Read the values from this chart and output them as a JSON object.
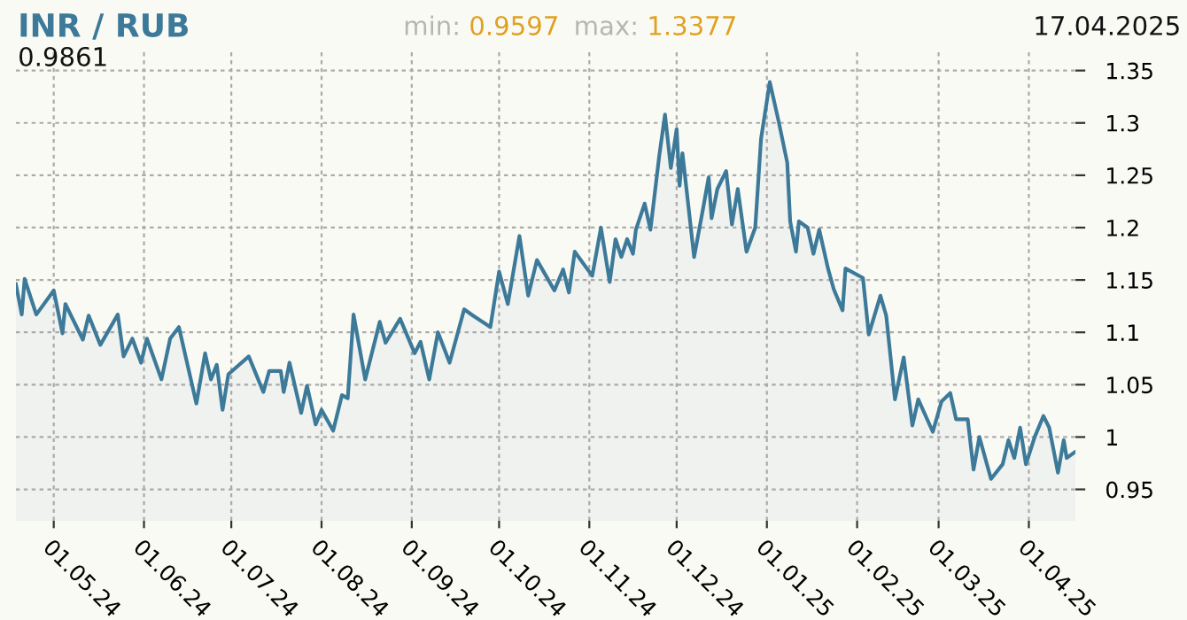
{
  "chart_data": {
    "type": "area",
    "title": "INR / RUB",
    "annotations": [
      "min: 0.9597",
      "max: 1.3377",
      "17.04.2025",
      "0.9861"
    ],
    "x": [
      "2024-04-18",
      "2024-04-20",
      "2024-04-21",
      "2024-04-25",
      "2024-05-01",
      "2024-05-04",
      "2024-05-05",
      "2024-05-11",
      "2024-05-13",
      "2024-05-17",
      "2024-05-23",
      "2024-05-25",
      "2024-05-28",
      "2024-05-31",
      "2024-06-02",
      "2024-06-07",
      "2024-06-10",
      "2024-06-13",
      "2024-06-19",
      "2024-06-22",
      "2024-06-24",
      "2024-06-26",
      "2024-06-28",
      "2024-06-30",
      "2024-07-07",
      "2024-07-12",
      "2024-07-14",
      "2024-07-18",
      "2024-07-19",
      "2024-07-21",
      "2024-07-25",
      "2024-07-27",
      "2024-07-30",
      "2024-08-01",
      "2024-08-05",
      "2024-08-08",
      "2024-08-10",
      "2024-08-12",
      "2024-08-16",
      "2024-08-21",
      "2024-08-23",
      "2024-08-28",
      "2024-09-02",
      "2024-09-04",
      "2024-09-07",
      "2024-09-10",
      "2024-09-14",
      "2024-09-19",
      "2024-09-22",
      "2024-09-28",
      "2024-10-01",
      "2024-10-04",
      "2024-10-08",
      "2024-10-11",
      "2024-10-14",
      "2024-10-20",
      "2024-10-23",
      "2024-10-25",
      "2024-10-27",
      "2024-11-02",
      "2024-11-05",
      "2024-11-08",
      "2024-11-10",
      "2024-11-12",
      "2024-11-14",
      "2024-11-16",
      "2024-11-17",
      "2024-11-20",
      "2024-11-22",
      "2024-11-25",
      "2024-11-27",
      "2024-11-29",
      "2024-12-01",
      "2024-12-02",
      "2024-12-03",
      "2024-12-07",
      "2024-12-10",
      "2024-12-12",
      "2024-12-13",
      "2024-12-15",
      "2024-12-18",
      "2024-12-20",
      "2024-12-22",
      "2024-12-25",
      "2024-12-28",
      "2024-12-30",
      "2025-01-02",
      "2025-01-05",
      "2025-01-08",
      "2025-01-09",
      "2025-01-11",
      "2025-01-12",
      "2025-01-15",
      "2025-01-17",
      "2025-01-19",
      "2025-01-22",
      "2025-01-24",
      "2025-01-27",
      "2025-01-28",
      "2025-02-03",
      "2025-02-05",
      "2025-02-09",
      "2025-02-11",
      "2025-02-14",
      "2025-02-17",
      "2025-02-20",
      "2025-02-22",
      "2025-02-27",
      "2025-03-02",
      "2025-03-05",
      "2025-03-07",
      "2025-03-11",
      "2025-03-13",
      "2025-03-15",
      "2025-03-19",
      "2025-03-23",
      "2025-03-25",
      "2025-03-27",
      "2025-03-29",
      "2025-03-31",
      "2025-04-03",
      "2025-04-06",
      "2025-04-08",
      "2025-04-11",
      "2025-04-13",
      "2025-04-14",
      "2025-04-17"
    ],
    "series": [
      {
        "color": "#3d7a99",
        "values": [
          1.146,
          1.117,
          1.151,
          1.117,
          1.14,
          1.099,
          1.127,
          1.093,
          1.116,
          1.088,
          1.117,
          1.077,
          1.094,
          1.071,
          1.094,
          1.055,
          1.094,
          1.105,
          1.032,
          1.08,
          1.055,
          1.069,
          1.026,
          1.06,
          1.077,
          1.043,
          1.063,
          1.063,
          1.043,
          1.071,
          1.023,
          1.049,
          1.012,
          1.026,
          1.006,
          1.04,
          1.037,
          1.117,
          1.055,
          1.11,
          1.09,
          1.113,
          1.08,
          1.091,
          1.055,
          1.1,
          1.071,
          1.122,
          1.116,
          1.105,
          1.158,
          1.127,
          1.192,
          1.135,
          1.169,
          1.14,
          1.16,
          1.138,
          1.177,
          1.154,
          1.2,
          1.148,
          1.189,
          1.172,
          1.189,
          1.175,
          1.198,
          1.223,
          1.198,
          1.268,
          1.308,
          1.257,
          1.294,
          1.24,
          1.271,
          1.172,
          1.217,
          1.248,
          1.209,
          1.237,
          1.254,
          1.203,
          1.237,
          1.177,
          1.2,
          1.285,
          1.339,
          1.302,
          1.262,
          1.206,
          1.177,
          1.206,
          1.2,
          1.175,
          1.198,
          1.161,
          1.141,
          1.121,
          1.161,
          1.152,
          1.098,
          1.135,
          1.116,
          1.036,
          1.076,
          1.011,
          1.036,
          1.005,
          1.034,
          1.042,
          1.017,
          1.017,
          0.969,
          1.0,
          0.96,
          0.974,
          0.997,
          0.98,
          1.009,
          0.974,
          1.0,
          1.02,
          1.009,
          0.966,
          0.997,
          0.98,
          0.986
        ]
      }
    ],
    "xlim": [
      "2024-04-18",
      "2025-04-17"
    ],
    "xticks": [
      {
        "value": "2024-05-01",
        "label": "01.05.24"
      },
      {
        "value": "2024-06-01",
        "label": "01.06.24"
      },
      {
        "value": "2024-07-01",
        "label": "01.07.24"
      },
      {
        "value": "2024-08-01",
        "label": "01.08.24"
      },
      {
        "value": "2024-09-01",
        "label": "01.09.24"
      },
      {
        "value": "2024-10-01",
        "label": "01.10.24"
      },
      {
        "value": "2024-11-01",
        "label": "01.11.24"
      },
      {
        "value": "2024-12-01",
        "label": "01.12.24"
      },
      {
        "value": "2025-01-01",
        "label": "01.01.25"
      },
      {
        "value": "2025-02-01",
        "label": "01.02.25"
      },
      {
        "value": "2025-03-01",
        "label": "01.03.25"
      },
      {
        "value": "2025-04-01",
        "label": "01.04.25"
      }
    ],
    "ylim": [
      0.92,
      1.37
    ],
    "yticks": [
      0.95,
      1,
      1.05,
      1.1,
      1.15,
      1.2,
      1.25,
      1.3,
      1.35
    ],
    "grid": true,
    "legend": false,
    "line_style": "solid",
    "marker": "none"
  }
}
